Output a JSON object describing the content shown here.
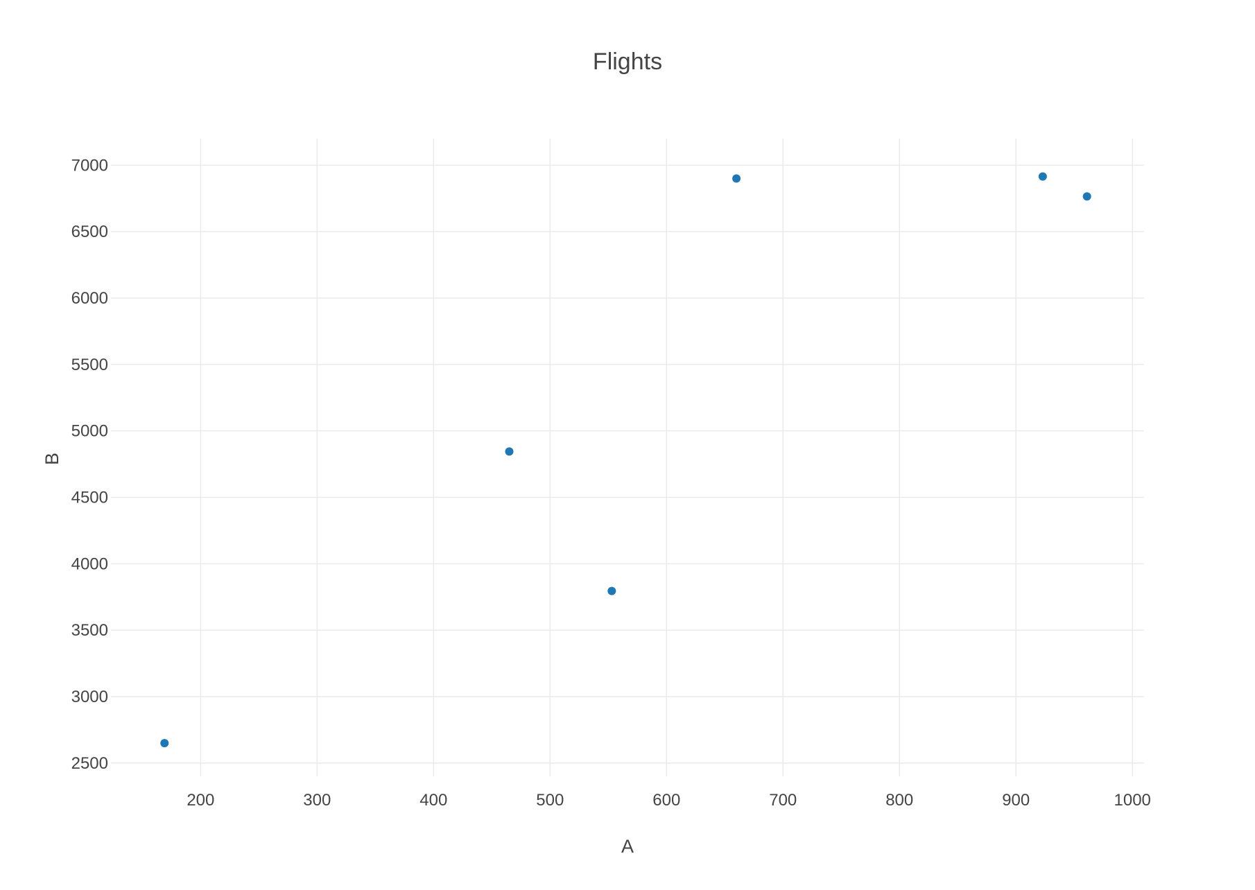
{
  "chart_data": {
    "type": "scatter",
    "title": "Flights",
    "xlabel": "A",
    "ylabel": "B",
    "xlim": [
      123,
      1010
    ],
    "ylim": [
      2400,
      7200
    ],
    "x_ticks": [
      200,
      300,
      400,
      500,
      600,
      700,
      800,
      900,
      1000
    ],
    "y_ticks": [
      2500,
      3000,
      3500,
      4000,
      4500,
      5000,
      5500,
      6000,
      6500,
      7000
    ],
    "grid": true,
    "legend": "none",
    "marker_color": "#1f77b4",
    "series": [
      {
        "points": [
          {
            "x": 169,
            "y": 2650
          },
          {
            "x": 465,
            "y": 4845
          },
          {
            "x": 553,
            "y": 3795
          },
          {
            "x": 660,
            "y": 6900
          },
          {
            "x": 923,
            "y": 6915
          },
          {
            "x": 961,
            "y": 6765
          }
        ]
      }
    ]
  }
}
